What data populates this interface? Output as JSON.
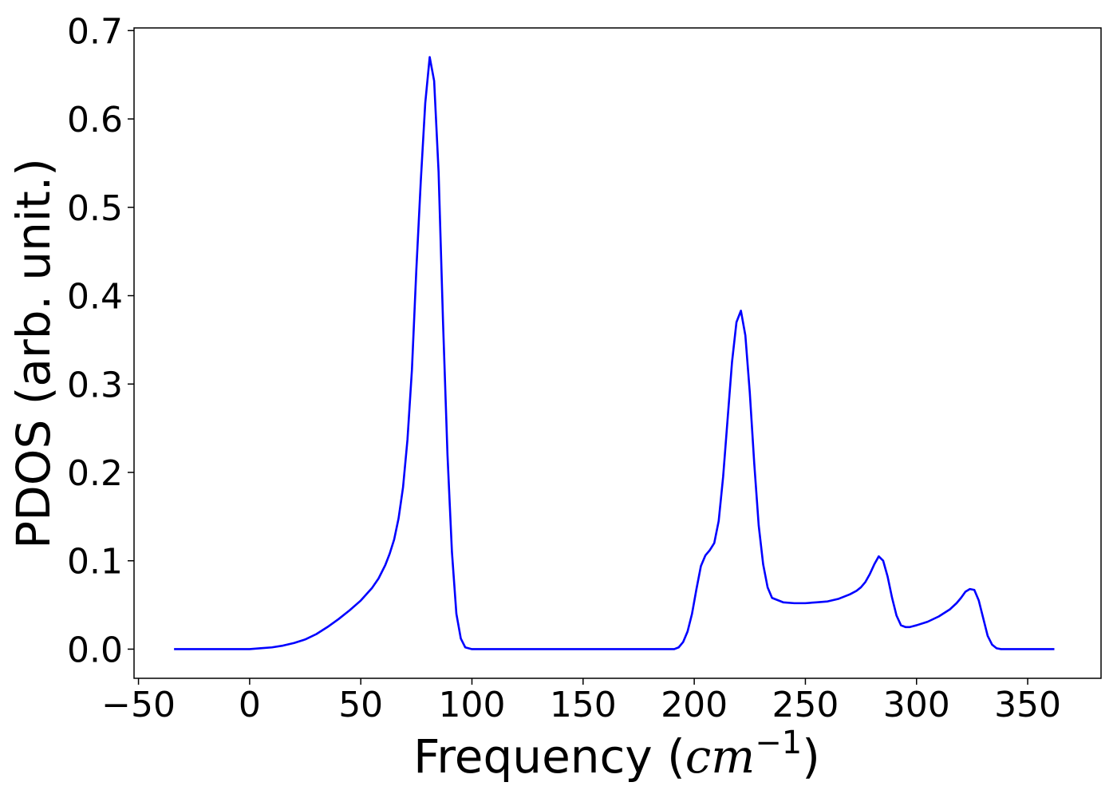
{
  "chart_data": {
    "type": "line",
    "title": "",
    "xlabel": {
      "prefix": "Frequency (",
      "unit_base": "cm",
      "unit_exponent": "−1",
      "suffix": ")"
    },
    "ylabel": "PDOS (arb. unit.)",
    "xlim": [
      -52,
      383
    ],
    "ylim": [
      -0.033,
      0.703
    ],
    "xticks": [
      -50,
      0,
      50,
      100,
      150,
      200,
      250,
      300,
      350
    ],
    "xtick_labels": [
      "−50",
      "0",
      "50",
      "100",
      "150",
      "200",
      "250",
      "300",
      "350"
    ],
    "yticks": [
      0.0,
      0.1,
      0.2,
      0.3,
      0.4,
      0.5,
      0.6,
      0.7
    ],
    "ytick_labels": [
      "0.0",
      "0.1",
      "0.2",
      "0.3",
      "0.4",
      "0.5",
      "0.6",
      "0.7"
    ],
    "grid": false,
    "legend": "none",
    "series": [
      {
        "color": "#0000ff",
        "x": [
          -34,
          -10,
          0,
          5,
          10,
          15,
          20,
          25,
          30,
          35,
          40,
          45,
          50,
          55,
          58,
          61,
          63,
          65,
          67,
          69,
          71,
          73,
          75,
          77,
          79,
          81,
          83,
          85,
          87,
          89,
          91,
          93,
          95,
          97,
          100,
          120,
          150,
          180,
          191,
          193,
          195,
          197,
          199,
          201,
          203,
          205,
          207,
          209,
          211,
          213,
          215,
          217,
          219,
          221,
          223,
          225,
          227,
          229,
          231,
          233,
          235,
          240,
          245,
          250,
          255,
          260,
          265,
          270,
          273,
          275,
          277,
          279,
          281,
          283,
          285,
          287,
          289,
          291,
          293,
          295,
          297,
          300,
          305,
          310,
          315,
          318,
          320,
          322,
          324,
          326,
          328,
          330,
          332,
          334,
          336,
          338,
          340,
          345,
          355,
          362
        ],
        "y": [
          0.0,
          0.0,
          0.0,
          0.001,
          0.002,
          0.004,
          0.007,
          0.011,
          0.017,
          0.025,
          0.034,
          0.044,
          0.055,
          0.069,
          0.08,
          0.095,
          0.108,
          0.124,
          0.148,
          0.183,
          0.237,
          0.316,
          0.43,
          0.53,
          0.618,
          0.67,
          0.643,
          0.54,
          0.37,
          0.22,
          0.11,
          0.04,
          0.012,
          0.002,
          0.0,
          0.0,
          0.0,
          0.0,
          0.0,
          0.002,
          0.008,
          0.02,
          0.04,
          0.068,
          0.094,
          0.106,
          0.112,
          0.12,
          0.145,
          0.195,
          0.26,
          0.325,
          0.37,
          0.383,
          0.355,
          0.29,
          0.21,
          0.14,
          0.096,
          0.07,
          0.058,
          0.053,
          0.052,
          0.052,
          0.053,
          0.054,
          0.057,
          0.062,
          0.066,
          0.07,
          0.076,
          0.085,
          0.096,
          0.105,
          0.1,
          0.082,
          0.058,
          0.038,
          0.027,
          0.025,
          0.025,
          0.027,
          0.031,
          0.037,
          0.045,
          0.052,
          0.058,
          0.065,
          0.068,
          0.067,
          0.055,
          0.035,
          0.015,
          0.005,
          0.001,
          0.0,
          0.0,
          0.0,
          0.0,
          0.0
        ]
      }
    ]
  }
}
